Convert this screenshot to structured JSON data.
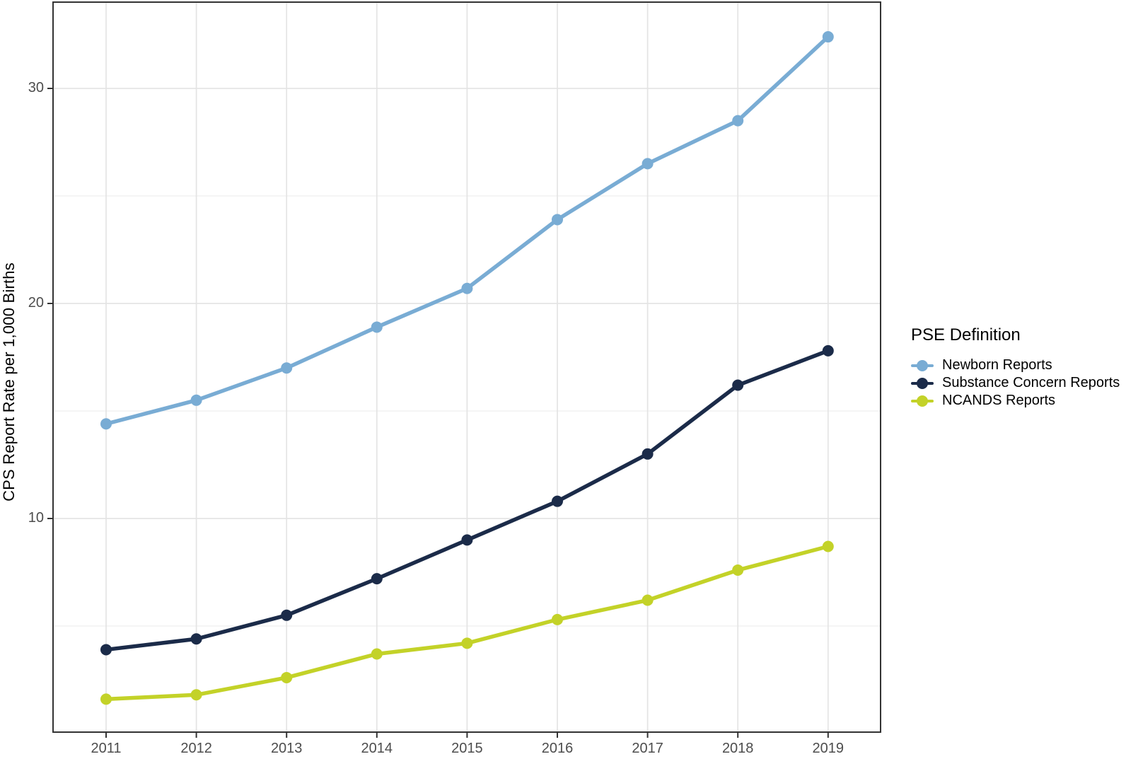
{
  "figure": {
    "background": "#ffffff",
    "panel_border_color": "#333333",
    "grid_major_color": "#e4e4e4",
    "grid_minor_color": "#efefef",
    "tick_color": "#333333",
    "tick_label_color": "#4d4d4d"
  },
  "chart_data": {
    "type": "line",
    "title": "",
    "xlabel": "",
    "ylabel": "CPS Report Rate per 1,000 Births",
    "x": [
      "2011",
      "2012",
      "2013",
      "2014",
      "2015",
      "2016",
      "2017",
      "2018",
      "2019"
    ],
    "y_ticks": [
      10,
      20,
      30
    ],
    "y_minor_gridlines": [
      5,
      15,
      25
    ],
    "ylim": [
      0,
      33.9
    ],
    "grid": "on",
    "legend": {
      "title": "PSE Definition",
      "position": "right"
    },
    "series": [
      {
        "name": "Newborn Reports",
        "color": "#79acd4",
        "values": [
          14.4,
          15.5,
          17.0,
          18.9,
          20.7,
          23.9,
          26.5,
          28.5,
          32.4
        ]
      },
      {
        "name": "Substance Concern Reports",
        "color": "#1b2b49",
        "values": [
          3.9,
          4.4,
          5.5,
          7.2,
          9.0,
          10.8,
          13.0,
          16.2,
          17.8
        ]
      },
      {
        "name": "NCANDS Reports",
        "color": "#c3d228",
        "values": [
          1.6,
          1.8,
          2.6,
          3.7,
          4.2,
          5.3,
          6.2,
          7.6,
          8.7
        ]
      }
    ]
  }
}
